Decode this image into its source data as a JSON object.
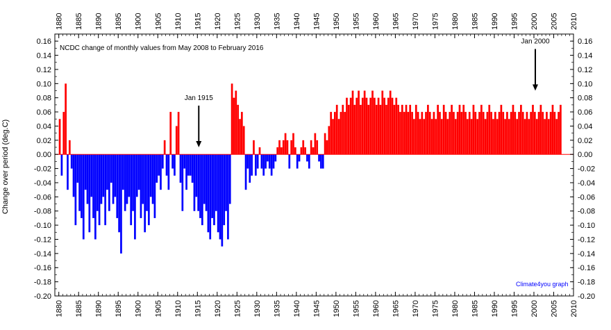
{
  "chart_data": {
    "type": "bar",
    "title": "NCDC change of monthly values from May 2008 to February 2016",
    "ylabel": "Change over period (deg.C)",
    "xlabel": "",
    "xlim": [
      1879,
      2010
    ],
    "ylim": [
      -0.2,
      0.17
    ],
    "x_ticks": [
      1880,
      1885,
      1890,
      1895,
      1900,
      1905,
      1910,
      1915,
      1920,
      1925,
      1930,
      1935,
      1940,
      1945,
      1950,
      1955,
      1960,
      1965,
      1970,
      1975,
      1980,
      1985,
      1990,
      1995,
      2000,
      2005,
      2010
    ],
    "y_ticks": [
      -0.2,
      -0.18,
      -0.16,
      -0.14,
      -0.12,
      -0.1,
      -0.08,
      -0.06,
      -0.04,
      -0.02,
      0.0,
      0.02,
      0.04,
      0.06,
      0.08,
      0.1,
      0.12,
      0.14,
      0.16
    ],
    "positive_color": "#ff0000",
    "negative_color": "#0000ff",
    "annotations": [
      {
        "text": "Jan 1915",
        "x": 1915.0,
        "y": 0.01
      },
      {
        "text": "Jan 2000",
        "x": 2000.0,
        "y": 0.09
      }
    ],
    "credit": "Climate4you graph",
    "grid": false,
    "series": [
      {
        "values": {
          "x_start": 1880.0,
          "step_years": 0.5,
          "y": [
            0.05,
            -0.03,
            0.06,
            0.1,
            -0.05,
            0.02,
            -0.02,
            -0.06,
            -0.1,
            -0.04,
            -0.08,
            -0.09,
            -0.12,
            -0.05,
            -0.07,
            -0.11,
            -0.06,
            -0.09,
            -0.12,
            -0.08,
            -0.1,
            -0.07,
            -0.06,
            -0.1,
            -0.05,
            -0.08,
            -0.04,
            -0.07,
            -0.06,
            -0.09,
            -0.11,
            -0.14,
            -0.05,
            -0.08,
            -0.07,
            -0.06,
            -0.1,
            -0.08,
            -0.12,
            -0.06,
            -0.05,
            -0.09,
            -0.07,
            -0.11,
            -0.08,
            -0.1,
            -0.06,
            -0.07,
            -0.09,
            -0.04,
            -0.03,
            -0.05,
            -0.02,
            0.02,
            -0.03,
            -0.05,
            0.06,
            -0.02,
            -0.03,
            0.04,
            0.06,
            -0.04,
            -0.08,
            -0.02,
            -0.05,
            -0.03,
            -0.03,
            -0.04,
            -0.08,
            -0.06,
            -0.08,
            -0.09,
            -0.1,
            -0.07,
            -0.08,
            -0.11,
            -0.12,
            -0.09,
            -0.1,
            -0.08,
            -0.11,
            -0.12,
            -0.13,
            -0.1,
            -0.08,
            -0.12,
            -0.07,
            0.1,
            0.08,
            0.09,
            0.07,
            0.05,
            0.06,
            0.04,
            -0.05,
            -0.02,
            -0.04,
            -0.03,
            0.02,
            -0.03,
            -0.02,
            0.01,
            -0.02,
            -0.03,
            -0.02,
            -0.01,
            -0.02,
            -0.03,
            -0.02,
            -0.01,
            0.01,
            0.02,
            0.01,
            0.02,
            0.03,
            0.02,
            -0.02,
            0.02,
            0.03,
            0.01,
            -0.02,
            -0.01,
            0.01,
            0.02,
            0.01,
            -0.01,
            -0.02,
            0.02,
            0.01,
            0.03,
            0.02,
            -0.01,
            -0.02,
            -0.02,
            0.03,
            0.02,
            0.04,
            0.06,
            0.05,
            0.06,
            0.07,
            0.05,
            0.06,
            0.07,
            0.06,
            0.08,
            0.07,
            0.08,
            0.09,
            0.07,
            0.08,
            0.09,
            0.07,
            0.08,
            0.09,
            0.08,
            0.07,
            0.08,
            0.09,
            0.08,
            0.07,
            0.08,
            0.07,
            0.09,
            0.08,
            0.07,
            0.08,
            0.09,
            0.08,
            0.07,
            0.08,
            0.07,
            0.06,
            0.07,
            0.06,
            0.07,
            0.06,
            0.07,
            0.06,
            0.05,
            0.07,
            0.06,
            0.05,
            0.06,
            0.05,
            0.06,
            0.07,
            0.06,
            0.05,
            0.06,
            0.05,
            0.07,
            0.06,
            0.05,
            0.07,
            0.06,
            0.05,
            0.06,
            0.07,
            0.06,
            0.05,
            0.06,
            0.07,
            0.06,
            0.07,
            0.06,
            0.05,
            0.06,
            0.05,
            0.07,
            0.06,
            0.05,
            0.06,
            0.07,
            0.06,
            0.05,
            0.06,
            0.07,
            0.06,
            0.05,
            0.06,
            0.05,
            0.06,
            0.07,
            0.06,
            0.05,
            0.06,
            0.05,
            0.06,
            0.07,
            0.06,
            0.05,
            0.06,
            0.07,
            0.06,
            0.05,
            0.06,
            0.05,
            0.06,
            0.07,
            0.06,
            0.05,
            0.06,
            0.07,
            0.06,
            0.05,
            0.06,
            0.05,
            0.06,
            0.07,
            0.06,
            0.05,
            0.06,
            0.07
          ]
        }
      }
    ]
  }
}
